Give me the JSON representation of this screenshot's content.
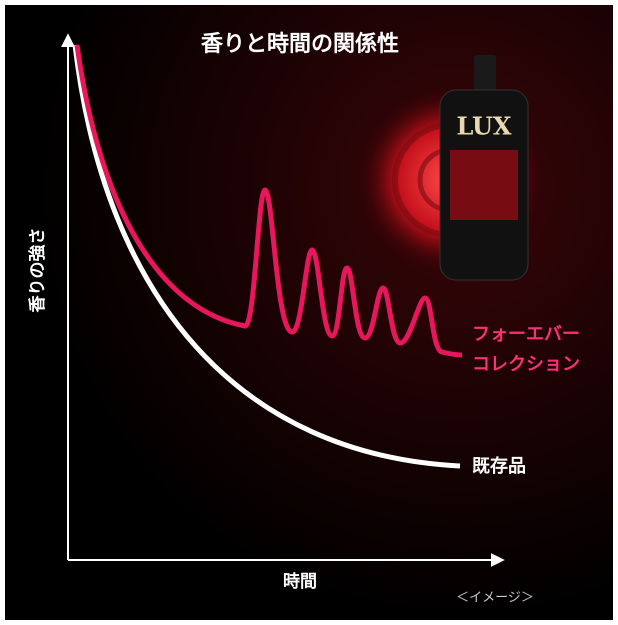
{
  "header": {
    "title": "香りと時間の関係性"
  },
  "axes": {
    "y_label": "香りの強さ",
    "x_label": "時間"
  },
  "curves": {
    "forever": [
      "フォーエバー",
      "コレクション"
    ],
    "existing": "既存品"
  },
  "product": {
    "brand": "LUX"
  },
  "note": "＜イメージ＞"
}
